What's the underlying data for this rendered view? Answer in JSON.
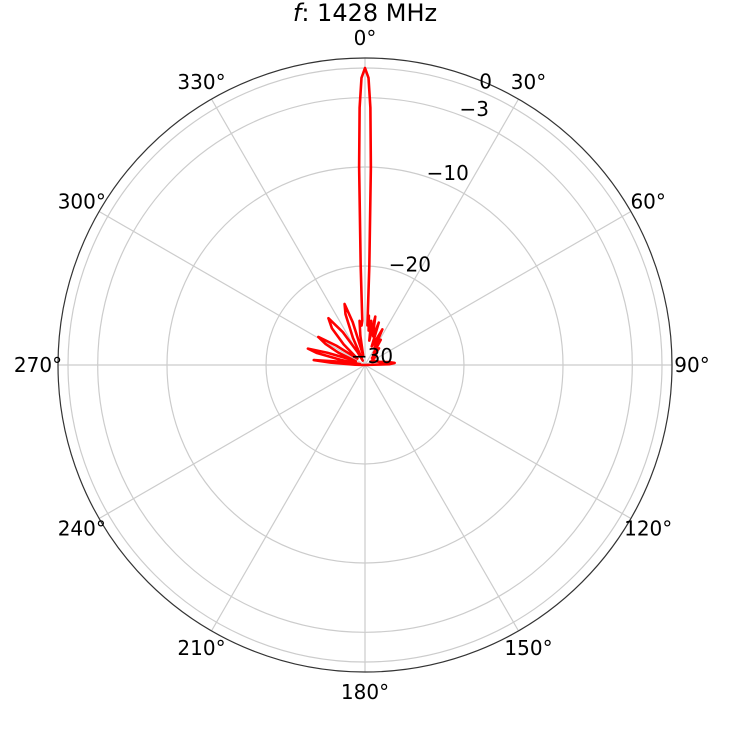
{
  "chart_data": {
    "type": "line",
    "projection": "polar",
    "theta_zero": "top",
    "theta_direction": "clockwise",
    "title_var": "f",
    "title_rest": ": 1428 MHz",
    "r_range": [
      -30,
      0
    ],
    "r_ticks": [
      {
        "value": -30,
        "label": "−30"
      },
      {
        "value": -20,
        "label": "−20"
      },
      {
        "value": -10,
        "label": "−10"
      },
      {
        "value": -3,
        "label": "−3"
      },
      {
        "value": 0,
        "label": "0"
      }
    ],
    "theta_ticks": [
      {
        "angle": 0,
        "label": "0°"
      },
      {
        "angle": 30,
        "label": "30°"
      },
      {
        "angle": 60,
        "label": "60°"
      },
      {
        "angle": 90,
        "label": "90°"
      },
      {
        "angle": 120,
        "label": "120°"
      },
      {
        "angle": 150,
        "label": "150°"
      },
      {
        "angle": 180,
        "label": "180°"
      },
      {
        "angle": 210,
        "label": "210°"
      },
      {
        "angle": 240,
        "label": "240°"
      },
      {
        "angle": 270,
        "label": "270°"
      },
      {
        "angle": 300,
        "label": "300°"
      },
      {
        "angle": 330,
        "label": "330°"
      }
    ],
    "grid": true,
    "series": [
      {
        "color": "#ff0000",
        "points": [
          [
            270.0,
            -30.0
          ],
          [
            272.0,
            -29.0
          ],
          [
            274.0,
            -26.5
          ],
          [
            275.5,
            -24.8
          ],
          [
            277.0,
            -27.0
          ],
          [
            278.5,
            -29.0
          ],
          [
            280.0,
            -29.5
          ],
          [
            282.0,
            -27.5
          ],
          [
            284.0,
            -25.0
          ],
          [
            286.0,
            -24.0
          ],
          [
            288.0,
            -26.0
          ],
          [
            290.0,
            -28.0
          ],
          [
            292.0,
            -29.0
          ],
          [
            295.0,
            -27.0
          ],
          [
            298.0,
            -25.5
          ],
          [
            301.0,
            -24.5
          ],
          [
            304.0,
            -26.5
          ],
          [
            307.0,
            -28.5
          ],
          [
            310.0,
            -29.0
          ],
          [
            314.0,
            -27.0
          ],
          [
            318.0,
            -25.0
          ],
          [
            322.0,
            -24.0
          ],
          [
            326.0,
            -26.0
          ],
          [
            330.0,
            -28.5
          ],
          [
            333.0,
            -29.5
          ],
          [
            336.0,
            -27.0
          ],
          [
            339.0,
            -24.5
          ],
          [
            341.5,
            -23.5
          ],
          [
            344.0,
            -25.5
          ],
          [
            347.0,
            -28.5
          ],
          [
            349.0,
            -29.0
          ],
          [
            351.0,
            -27.0
          ],
          [
            353.0,
            -25.5
          ],
          [
            355.0,
            -26.0
          ],
          [
            356.5,
            -25.5
          ],
          [
            357.5,
            -20.0
          ],
          [
            358.3,
            -10.0
          ],
          [
            358.8,
            -4.0
          ],
          [
            359.3,
            -1.0
          ],
          [
            0.0,
            0.0
          ],
          [
            0.7,
            -1.0
          ],
          [
            1.2,
            -4.0
          ],
          [
            1.7,
            -10.0
          ],
          [
            2.5,
            -20.0
          ],
          [
            3.5,
            -26.0
          ],
          [
            4.5,
            -25.0
          ],
          [
            6.0,
            -26.5
          ],
          [
            8.0,
            -25.5
          ],
          [
            10.0,
            -27.5
          ],
          [
            12.0,
            -25.0
          ],
          [
            14.0,
            -26.5
          ],
          [
            16.0,
            -27.0
          ],
          [
            18.0,
            -25.5
          ],
          [
            20.0,
            -28.0
          ],
          [
            23.0,
            -27.5
          ],
          [
            26.0,
            -26.0
          ],
          [
            29.0,
            -28.0
          ],
          [
            32.0,
            -27.0
          ],
          [
            36.0,
            -28.5
          ],
          [
            40.0,
            -27.8
          ],
          [
            45.0,
            -29.0
          ],
          [
            50.0,
            -28.5
          ],
          [
            55.0,
            -29.0
          ],
          [
            60.0,
            -29.3
          ],
          [
            66.0,
            -29.0
          ],
          [
            72.0,
            -28.8
          ],
          [
            78.0,
            -28.5
          ],
          [
            83.0,
            -27.6
          ],
          [
            86.0,
            -27.0
          ],
          [
            88.0,
            -27.5
          ],
          [
            90.0,
            -30.0
          ]
        ]
      }
    ]
  }
}
